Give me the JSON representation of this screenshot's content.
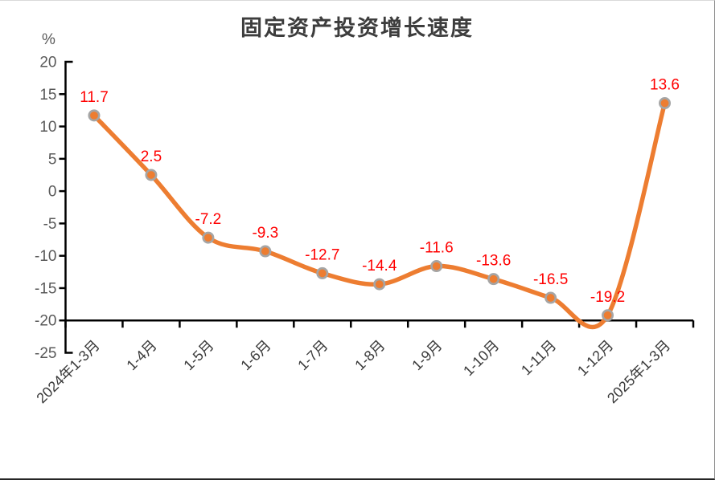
{
  "chart_data": {
    "type": "line",
    "title": "固定资产投资增长速度",
    "ylabel": "%",
    "categories": [
      "2024年1-3月",
      "1-4月",
      "1-5月",
      "1-6月",
      "1-7月",
      "1-8月",
      "1-9月",
      "1-10月",
      "1-11月",
      "1-12月",
      "2025年1-3月"
    ],
    "values": [
      11.7,
      2.5,
      -7.2,
      -9.3,
      -12.7,
      -14.4,
      -11.6,
      -13.6,
      -16.5,
      -19.2,
      13.6
    ],
    "ylim": [
      -25,
      20
    ],
    "yticks": [
      20,
      15,
      10,
      5,
      0,
      -5,
      -10,
      -15,
      -20,
      -25
    ],
    "x_axis_cross_value": -20,
    "grid": false,
    "legend_position": "none",
    "smooth_line": true,
    "colors": {
      "line": "#ED7D31",
      "marker_fill": "#ED7D31",
      "marker_stroke": "#A5A5A5",
      "data_label": "#FF0000",
      "axis": "#000000",
      "ytick_label": "#595959",
      "xtick_label": "#3a3a3a",
      "title": "#3d3d3d"
    }
  }
}
